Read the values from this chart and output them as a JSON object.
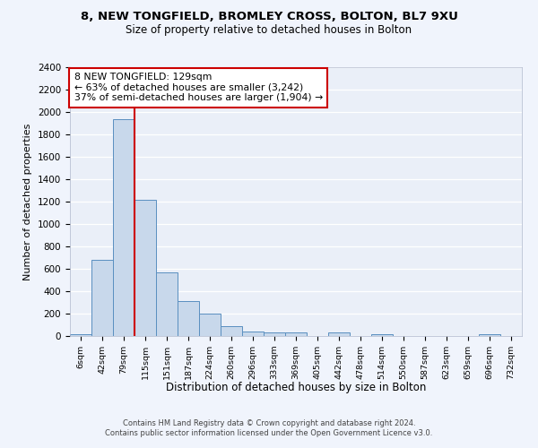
{
  "title1": "8, NEW TONGFIELD, BROMLEY CROSS, BOLTON, BL7 9XU",
  "title2": "Size of property relative to detached houses in Bolton",
  "xlabel": "Distribution of detached houses by size in Bolton",
  "ylabel": "Number of detached properties",
  "bin_labels": [
    "6sqm",
    "42sqm",
    "79sqm",
    "115sqm",
    "151sqm",
    "187sqm",
    "224sqm",
    "260sqm",
    "296sqm",
    "333sqm",
    "369sqm",
    "405sqm",
    "442sqm",
    "478sqm",
    "514sqm",
    "550sqm",
    "587sqm",
    "623sqm",
    "659sqm",
    "696sqm",
    "732sqm"
  ],
  "bar_heights": [
    20,
    680,
    1940,
    1220,
    570,
    310,
    200,
    85,
    40,
    35,
    35,
    0,
    35,
    0,
    20,
    0,
    0,
    0,
    0,
    20,
    0
  ],
  "bar_color": "#c8d8eb",
  "bar_edge_color": "#5a8fc0",
  "vline_x": 3,
  "annotation_color": "#cc0000",
  "annotation_text": "8 NEW TONGFIELD: 129sqm\n← 63% of detached houses are smaller (3,242)\n37% of semi-detached houses are larger (1,904) →",
  "ylim": [
    0,
    2400
  ],
  "yticks": [
    0,
    200,
    400,
    600,
    800,
    1000,
    1200,
    1400,
    1600,
    1800,
    2000,
    2200,
    2400
  ],
  "background_color": "#eaeff8",
  "grid_color": "#ffffff",
  "fig_bg_color": "#f0f4fc",
  "footnote": "Contains HM Land Registry data © Crown copyright and database right 2024.\nContains public sector information licensed under the Open Government Licence v3.0."
}
